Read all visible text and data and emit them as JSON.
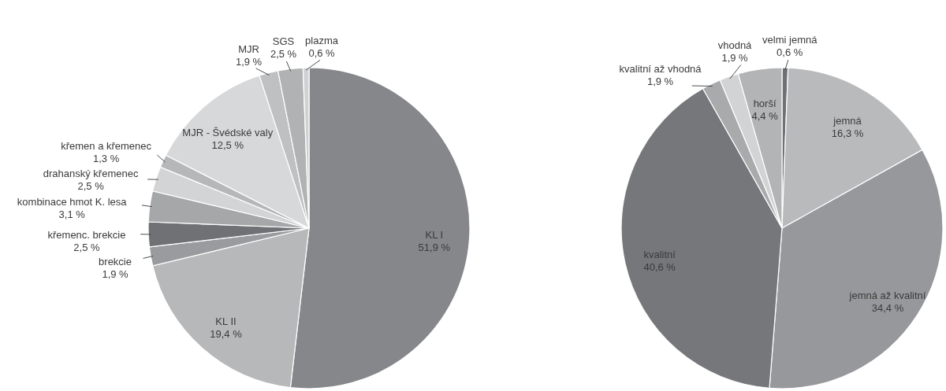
{
  "chart_data": [
    {
      "type": "pie",
      "categories": [
        "KL I",
        "KL II",
        "brekcie",
        "křemenc. brekcie",
        "kombinace hmot K. lesa",
        "drahanský křemenec",
        "křemen a křemenec",
        "MJR - Švédské valy",
        "MJR",
        "SGS",
        "plazma"
      ],
      "values": [
        51.9,
        19.4,
        1.9,
        2.5,
        3.1,
        2.5,
        1.3,
        12.5,
        1.9,
        2.5,
        0.6
      ],
      "colors": [
        "#86878b",
        "#b7b8ba",
        "#9a9b9e",
        "#707175",
        "#a6a7a9",
        "#d3d4d6",
        "#b6b7b9",
        "#d7d8d9",
        "#bfc0c2",
        "#b1b2b4",
        "#d0d1d3"
      ],
      "value_labels": [
        "51,9 %",
        "19,4 %",
        "1,9 %",
        "2,5 %",
        "3,1 %",
        "2,5 %",
        "1,3 %",
        "12,5 %",
        "1,9 %",
        "2,5 %",
        "0,6 %"
      ]
    },
    {
      "type": "pie",
      "categories": [
        "velmi jemná",
        "jemná",
        "jemná až kvalitní",
        "kvalitní",
        "kvalitní až vhodná",
        "vhodná",
        "horší"
      ],
      "values": [
        0.6,
        16.3,
        34.4,
        40.6,
        1.9,
        1.9,
        4.4
      ],
      "colors": [
        "#6f7074",
        "#b9babc",
        "#97989b",
        "#76777b",
        "#a9aaac",
        "#d2d3d5",
        "#b3b4b6"
      ],
      "value_labels": [
        "0,6 %",
        "16,3 %",
        "34,4 %",
        "40,6 %",
        "1,9 %",
        "1,9 %",
        "4,4 %"
      ]
    }
  ]
}
